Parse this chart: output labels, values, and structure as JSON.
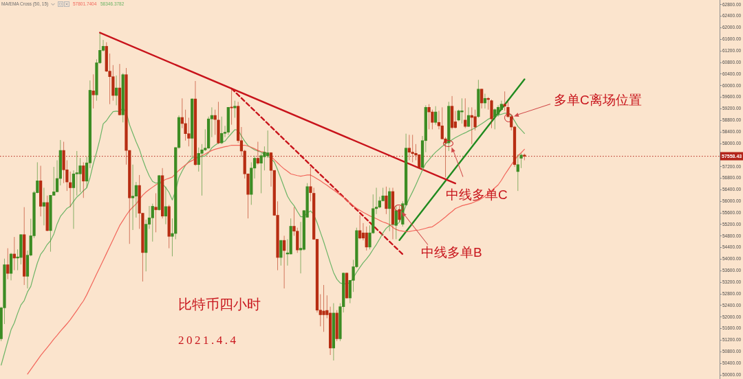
{
  "chart_data": {
    "type": "candlestick",
    "categories": [
      null,
      null,
      null,
      null,
      null,
      null,
      null,
      null,
      null,
      null,
      null,
      null,
      null,
      null,
      null,
      null,
      null,
      null,
      null,
      null,
      null,
      null,
      null,
      null,
      null,
      null,
      null,
      null,
      null,
      null,
      null,
      null,
      null,
      null,
      null,
      null,
      null,
      null,
      null,
      null,
      null,
      null,
      null,
      null,
      null,
      null,
      null,
      null,
      null,
      null,
      null,
      null,
      null,
      null,
      null,
      null,
      null,
      null,
      null,
      null,
      null,
      null,
      null,
      null,
      null,
      null,
      null,
      null,
      null,
      null,
      null,
      null,
      null,
      null,
      null,
      null,
      null,
      null,
      null,
      null,
      null,
      null,
      null,
      null,
      null,
      null,
      null,
      null,
      null,
      null,
      null,
      null,
      null,
      null,
      null,
      null,
      null,
      null,
      null,
      null,
      null,
      null,
      null,
      null,
      null,
      null,
      null,
      null,
      null,
      null,
      null,
      null,
      null,
      null,
      null,
      null,
      null,
      null,
      null,
      null,
      null,
      null,
      null,
      null,
      null,
      null,
      null,
      null,
      null,
      null,
      null,
      null,
      null,
      null,
      null,
      null,
      null,
      null,
      null,
      null,
      null,
      null,
      null,
      null,
      null,
      null,
      null,
      null,
      null,
      null,
      null,
      null,
      null,
      null,
      null,
      null,
      null,
      null,
      null,
      null
    ],
    "ohlc": [
      [
        51250,
        52360,
        51170,
        52320
      ],
      [
        52320,
        54020,
        51760,
        53810
      ],
      [
        53810,
        54380,
        53310,
        53510
      ],
      [
        53510,
        54220,
        53270,
        54180
      ],
      [
        54180,
        54770,
        53620,
        54040
      ],
      [
        54040,
        54340,
        53620,
        54080
      ],
      [
        54060,
        54860,
        53820,
        54850
      ],
      [
        54850,
        55800,
        53110,
        53410
      ],
      [
        53410,
        54300,
        52990,
        54140
      ],
      [
        54140,
        55400,
        54100,
        54810
      ],
      [
        54810,
        56360,
        54730,
        56300
      ],
      [
        56300,
        57350,
        56280,
        56710
      ],
      [
        56710,
        57230,
        55480,
        55830
      ],
      [
        55830,
        56470,
        55170,
        55960
      ],
      [
        55960,
        56200,
        54970,
        54990
      ],
      [
        54990,
        56220,
        54260,
        56210
      ],
      [
        56210,
        57190,
        56200,
        56330
      ],
      [
        56330,
        57420,
        56320,
        56790
      ],
      [
        56790,
        58120,
        56550,
        57760
      ],
      [
        57760,
        58060,
        56630,
        57090
      ],
      [
        57090,
        57420,
        56360,
        56670
      ],
      [
        56650,
        57030,
        55800,
        56470
      ],
      [
        56470,
        57070,
        55050,
        56950
      ],
      [
        56950,
        57740,
        56200,
        56990
      ],
      [
        56950,
        57500,
        56320,
        57230
      ],
      [
        57230,
        57350,
        56120,
        56700
      ],
      [
        56700,
        57540,
        56470,
        57330
      ],
      [
        57330,
        60180,
        57150,
        59840
      ],
      [
        59820,
        60390,
        59210,
        59680
      ],
      [
        59680,
        60910,
        59480,
        60790
      ],
      [
        60790,
        61820,
        60750,
        61220
      ],
      [
        61220,
        61580,
        61180,
        61360
      ],
      [
        61360,
        61500,
        60470,
        60500
      ],
      [
        60500,
        61110,
        59360,
        60310
      ],
      [
        60310,
        60710,
        59480,
        59660
      ],
      [
        59660,
        60350,
        59320,
        59920
      ],
      [
        59920,
        60750,
        58970,
        58990
      ],
      [
        58990,
        60430,
        58730,
        60380
      ],
      [
        60380,
        60610,
        57270,
        57760
      ],
      [
        57760,
        57770,
        54530,
        56120
      ],
      [
        56120,
        57270,
        55010,
        56180
      ],
      [
        56180,
        56670,
        55440,
        56550
      ],
      [
        56550,
        56910,
        55050,
        55590
      ],
      [
        55590,
        55600,
        53230,
        54230
      ],
      [
        54230,
        55370,
        53580,
        55210
      ],
      [
        55210,
        55840,
        55050,
        55430
      ],
      [
        55430,
        55920,
        54610,
        55830
      ],
      [
        55800,
        56280,
        54930,
        55710
      ],
      [
        55710,
        56910,
        55680,
        56890
      ],
      [
        56890,
        57150,
        55410,
        55490
      ],
      [
        55490,
        56510,
        55210,
        55820
      ],
      [
        55820,
        55880,
        54380,
        54790
      ],
      [
        54790,
        55410,
        54100,
        54890
      ],
      [
        54890,
        57870,
        54690,
        57860
      ],
      [
        57860,
        58970,
        57820,
        58900
      ],
      [
        58900,
        59560,
        58530,
        58690
      ],
      [
        58690,
        59170,
        58100,
        58340
      ],
      [
        58340,
        58890,
        57900,
        58180
      ],
      [
        58180,
        59560,
        57500,
        59540
      ],
      [
        59540,
        60160,
        57230,
        57270
      ],
      [
        57270,
        57860,
        57030,
        57660
      ],
      [
        57660,
        57980,
        56200,
        57780
      ],
      [
        57780,
        58490,
        57740,
        57840
      ],
      [
        57840,
        58930,
        57820,
        58850
      ],
      [
        58850,
        59250,
        58220,
        58970
      ],
      [
        58970,
        59170,
        58300,
        58830
      ],
      [
        58810,
        59440,
        57980,
        58020
      ],
      [
        58020,
        58930,
        57980,
        58350
      ],
      [
        58350,
        58610,
        58220,
        58390
      ],
      [
        58390,
        59260,
        58300,
        59250
      ],
      [
        59260,
        59880,
        58650,
        59230
      ],
      [
        59230,
        59480,
        58890,
        59290
      ],
      [
        59290,
        59440,
        58020,
        58100
      ],
      [
        58100,
        58570,
        57540,
        57740
      ],
      [
        57740,
        57780,
        56790,
        56950
      ],
      [
        56950,
        56960,
        55410,
        56240
      ],
      [
        56240,
        57350,
        55880,
        57150
      ],
      [
        57150,
        57580,
        56790,
        57490
      ],
      [
        57490,
        58060,
        57270,
        57320
      ],
      [
        57320,
        57660,
        56280,
        57580
      ],
      [
        57540,
        57900,
        57070,
        57700
      ],
      [
        57580,
        58450,
        57500,
        57680
      ],
      [
        57680,
        57700,
        56510,
        57070
      ],
      [
        57070,
        57070,
        55500,
        55520
      ],
      [
        55520,
        56000,
        53620,
        54060
      ],
      [
        54060,
        54660,
        53780,
        54650
      ],
      [
        54650,
        54810,
        52990,
        54300
      ],
      [
        54180,
        54690,
        53780,
        54220
      ],
      [
        54180,
        55410,
        54170,
        55140
      ],
      [
        55140,
        55800,
        54810,
        54970
      ],
      [
        54970,
        55090,
        54220,
        54320
      ],
      [
        54320,
        55290,
        53510,
        54380
      ],
      [
        54340,
        55700,
        54300,
        55680
      ],
      [
        55450,
        56630,
        55440,
        56510
      ],
      [
        56510,
        57190,
        56000,
        56300
      ],
      [
        56280,
        56470,
        54670,
        54690
      ],
      [
        54690,
        54700,
        52160,
        52240
      ],
      [
        52240,
        52790,
        51680,
        52080
      ],
      [
        52210,
        53110,
        51490,
        52080
      ],
      [
        52230,
        52750,
        51960,
        52080
      ],
      [
        52140,
        52360,
        50690,
        50930
      ],
      [
        50930,
        52480,
        50500,
        52140
      ],
      [
        52140,
        52240,
        51170,
        51250
      ],
      [
        51250,
        52480,
        51170,
        52360
      ],
      [
        52360,
        53540,
        52160,
        53520
      ],
      [
        53520,
        53540,
        52640,
        52660
      ],
      [
        52660,
        53280,
        52480,
        53270
      ],
      [
        53270,
        53980,
        52870,
        53740
      ],
      [
        53740,
        55090,
        53700,
        54990
      ],
      [
        54990,
        55520,
        54690,
        54730
      ],
      [
        54910,
        55250,
        54650,
        54730
      ],
      [
        54910,
        55130,
        54300,
        54420
      ],
      [
        54420,
        55170,
        54340,
        54910
      ],
      [
        54910,
        56240,
        54880,
        55750
      ],
      [
        55750,
        56470,
        55560,
        55800
      ],
      [
        55800,
        56160,
        55760,
        56020
      ],
      [
        56020,
        56470,
        56000,
        56190
      ],
      [
        56190,
        56510,
        55560,
        55750
      ],
      [
        55750,
        56470,
        54970,
        56340
      ],
      [
        56340,
        56470,
        54690,
        55210
      ],
      [
        55170,
        55840,
        54690,
        55680
      ],
      [
        55720,
        55840,
        55290,
        55370
      ],
      [
        55210,
        56000,
        55130,
        55920
      ],
      [
        55880,
        58340,
        55840,
        57840
      ],
      [
        57840,
        58300,
        57420,
        57700
      ],
      [
        57700,
        58300,
        57350,
        57650
      ],
      [
        57660,
        57980,
        57420,
        57600
      ],
      [
        57610,
        57620,
        57150,
        57170
      ],
      [
        57170,
        58260,
        57150,
        58100
      ],
      [
        58100,
        59320,
        57700,
        59250
      ],
      [
        59250,
        59360,
        58490,
        59090
      ],
      [
        59090,
        59170,
        58490,
        58730
      ],
      [
        58730,
        59290,
        58650,
        59090
      ],
      [
        58730,
        59130,
        58490,
        58610
      ],
      [
        58610,
        59250,
        58140,
        58160
      ],
      [
        58160,
        58220,
        56830,
        58020
      ],
      [
        58020,
        59440,
        57740,
        59290
      ],
      [
        59290,
        59640,
        58490,
        58550
      ],
      [
        58750,
        59130,
        58520,
        58550
      ],
      [
        58810,
        59170,
        58770,
        59130
      ],
      [
        59090,
        59560,
        58690,
        59130
      ],
      [
        58810,
        59560,
        58530,
        58590
      ],
      [
        58590,
        59250,
        58570,
        58970
      ],
      [
        58970,
        59250,
        57980,
        58900
      ],
      [
        58930,
        59170,
        58450,
        58570
      ],
      [
        58930,
        60200,
        58890,
        59880
      ],
      [
        59880,
        59890,
        59210,
        59400
      ],
      [
        59400,
        59720,
        59210,
        59560
      ],
      [
        59560,
        59600,
        59170,
        59520
      ],
      [
        59480,
        59520,
        58530,
        58850
      ],
      [
        58930,
        59210,
        58490,
        59170
      ],
      [
        59010,
        59320,
        58930,
        59250
      ],
      [
        59170,
        59480,
        59130,
        59360
      ],
      [
        59360,
        59800,
        59130,
        59290
      ],
      [
        59250,
        59480,
        58890,
        58930
      ],
      [
        58930,
        58970,
        58450,
        58570
      ],
      [
        58570,
        58610,
        57190,
        57270
      ],
      [
        57030,
        57620,
        56360,
        57270
      ],
      [
        57490,
        57660,
        57150,
        57600
      ],
      [
        57600,
        57650,
        57420,
        57558.43
      ]
    ],
    "colors": [
      "#3c8c23",
      "#3c8c23",
      "#b72d12",
      "#3c8c23",
      "#b72d12",
      "#3c8c23",
      "#3c8c23",
      "#b72d12",
      "#3c8c23",
      "#3c8c23",
      "#3c8c23",
      "#3c8c23",
      "#b72d12",
      "#3c8c23",
      "#b72d12",
      "#3c8c23",
      "#3c8c23",
      "#3c8c23",
      "#3c8c23",
      "#b72d12",
      "#b72d12",
      "#b72d12",
      "#3c8c23",
      "#3c8c23",
      "#3c8c23",
      "#b72d12",
      "#3c8c23",
      "#3c8c23",
      "#b72d12",
      "#3c8c23",
      "#3c8c23",
      "#3c8c23",
      "#b72d12",
      "#b72d12",
      "#b72d12",
      "#3c8c23",
      "#b72d12",
      "#3c8c23",
      "#b72d12",
      "#b72d12",
      "#3c8c23",
      "#3c8c23",
      "#b72d12",
      "#b72d12",
      "#3c8c23",
      "#3c8c23",
      "#3c8c23",
      "#b72d12",
      "#3c8c23",
      "#b72d12",
      "#3c8c23",
      "#b72d12",
      "#3c8c23",
      "#3c8c23",
      "#3c8c23",
      "#b72d12",
      "#b72d12",
      "#b72d12",
      "#3c8c23",
      "#b72d12",
      "#3c8c23",
      "#3c8c23",
      "#3c8c23",
      "#3c8c23",
      "#3c8c23",
      "#b72d12",
      "#b72d12",
      "#3c8c23",
      "#3c8c23",
      "#3c8c23",
      "#b72d12",
      "#3c8c23",
      "#b72d12",
      "#b72d12",
      "#b72d12",
      "#b72d12",
      "#3c8c23",
      "#3c8c23",
      "#b72d12",
      "#3c8c23",
      "#3c8c23",
      "#3c8c23",
      "#b72d12",
      "#b72d12",
      "#b72d12",
      "#3c8c23",
      "#b72d12",
      "#3c8c23",
      "#3c8c23",
      "#b72d12",
      "#b72d12",
      "#3c8c23",
      "#3c8c23",
      "#3c8c23",
      "#b72d12",
      "#b72d12",
      "#b72d12",
      "#b72d12",
      "#b72d12",
      "#b72d12",
      "#b72d12",
      "#3c8c23",
      "#b72d12",
      "#3c8c23",
      "#3c8c23",
      "#b72d12",
      "#3c8c23",
      "#3c8c23",
      "#3c8c23",
      "#b72d12",
      "#b72d12",
      "#b72d12",
      "#3c8c23",
      "#3c8c23",
      "#3c8c23",
      "#3c8c23",
      "#3c8c23",
      "#b72d12",
      "#3c8c23",
      "#b72d12",
      "#3c8c23",
      "#b72d12",
      "#3c8c23",
      "#3c8c23",
      "#b72d12",
      "#b72d12",
      "#b72d12",
      "#b72d12",
      "#3c8c23",
      "#3c8c23",
      "#b72d12",
      "#b72d12",
      "#3c8c23",
      "#b72d12",
      "#b72d12",
      "#b72d12",
      "#3c8c23",
      "#b72d12",
      "#b72d12",
      "#3c8c23",
      "#3c8c23",
      "#b72d12",
      "#3c8c23",
      "#b72d12",
      "#b72d12",
      "#3c8c23",
      "#b72d12",
      "#3c8c23",
      "#b72d12",
      "#b72d12",
      "#3c8c23",
      "#3c8c23",
      "#3c8c23",
      "#b72d12",
      "#b72d12",
      "#b72d12",
      "#b72d12",
      "#3c8c23",
      "#3c8c23",
      "#b72d12"
    ],
    "series": [
      {
        "type": "line",
        "color": "#f2655a",
        "values": [
          null,
          null,
          null,
          null,
          null,
          null,
          null,
          null,
          50030,
          50190,
          50350,
          50510,
          50670,
          50810,
          50950,
          51090,
          51240,
          51370,
          51510,
          51640,
          51770,
          51910,
          52070,
          52230,
          52400,
          52560,
          52770,
          53010,
          53250,
          53490,
          53720,
          53960,
          54200,
          54440,
          54680,
          54920,
          55160,
          55340,
          55520,
          55680,
          55800,
          55910,
          56070,
          56210,
          56320,
          56410,
          56490,
          56570,
          56640,
          56700,
          56760,
          56800,
          56840,
          56960,
          57070,
          57170,
          57260,
          57350,
          57410,
          57470,
          57530,
          57580,
          57640,
          57700,
          57760,
          57800,
          57830,
          57860,
          57890,
          57910,
          57940,
          57940,
          57940,
          57940,
          57940,
          57910,
          57870,
          57820,
          57760,
          57720,
          57700,
          57640,
          57560,
          57440,
          57330,
          57220,
          57120,
          57040,
          56950,
          56920,
          56890,
          56870,
          56890,
          56910,
          56910,
          56850,
          56780,
          56710,
          56630,
          56560,
          56470,
          56390,
          56310,
          56220,
          56140,
          56040,
          55940,
          55850,
          55760,
          55690,
          55620,
          55560,
          55500,
          55450,
          55400,
          55340,
          55290,
          55250,
          55200,
          55100,
          55030,
          54990,
          54970,
          54950,
          54960,
          54980,
          55000,
          55010,
          55040,
          55070,
          55100,
          55120,
          55200,
          55280,
          55370,
          55460,
          55560,
          55650,
          55750,
          55800,
          55850,
          55880,
          55910,
          55940,
          55990,
          56030,
          56100,
          56180,
          56280,
          56370,
          56470,
          56570,
          56730,
          56920,
          57090,
          57260,
          57420,
          57580,
          57680,
          57801.7404
        ]
      },
      {
        "type": "line",
        "color": "#6cb466",
        "values": [
          50340,
          50750,
          51160,
          51560,
          51800,
          52130,
          52420,
          52570,
          52870,
          53060,
          53480,
          53870,
          54170,
          54320,
          54510,
          54640,
          54870,
          55220,
          55480,
          55620,
          55760,
          55830,
          56000,
          56150,
          56250,
          56370,
          56470,
          56820,
          57300,
          57700,
          58150,
          58680,
          58790,
          58960,
          59100,
          59120,
          59100,
          59230,
          59080,
          58650,
          58350,
          58060,
          57800,
          57450,
          57140,
          56880,
          56690,
          56630,
          56660,
          56600,
          56480,
          56310,
          56050,
          56370,
          56820,
          57050,
          57250,
          57380,
          57500,
          57520,
          57540,
          57550,
          57570,
          57680,
          57850,
          57940,
          58020,
          58050,
          58080,
          58220,
          58350,
          58480,
          58460,
          58260,
          58080,
          57930,
          57850,
          57780,
          57740,
          57700,
          57620,
          57580,
          57480,
          57360,
          57090,
          56790,
          56480,
          56180,
          55990,
          55850,
          55650,
          55470,
          55470,
          55600,
          55670,
          55540,
          55260,
          54930,
          54600,
          54240,
          53880,
          53540,
          53310,
          53180,
          53150,
          53150,
          53190,
          53360,
          53550,
          53720,
          53880,
          54010,
          54160,
          54340,
          54510,
          54700,
          54910,
          55070,
          55170,
          55200,
          55180,
          55280,
          55580,
          55850,
          56100,
          56330,
          56570,
          56830,
          57080,
          57310,
          57440,
          57580,
          57700,
          57800,
          57900,
          57990,
          58050,
          58130,
          58200,
          58260,
          58320,
          58370,
          58430,
          58480,
          58540,
          58610,
          58680,
          58760,
          58840,
          58900,
          58940,
          58980,
          59010,
          59050,
          59040,
          58970,
          58780,
          58590,
          58470,
          58346.3782
        ]
      },
      {
        "type": "line",
        "color": "#c8131b",
        "values": [
          null,
          null,
          null,
          null,
          null,
          null,
          null,
          null,
          null,
          null,
          null,
          null,
          null,
          null,
          null,
          null,
          null,
          null,
          null,
          null,
          null,
          null,
          null,
          null,
          null,
          null,
          null,
          null,
          null,
          null,
          61830,
          null,
          null,
          null,
          null,
          null,
          null,
          null,
          null,
          null,
          null,
          null,
          null,
          null,
          null,
          null,
          null,
          null,
          null,
          null,
          null,
          null,
          null,
          null,
          null,
          null,
          null,
          null,
          null,
          null,
          null,
          null,
          null,
          null,
          null,
          null,
          null,
          null,
          null,
          null,
          null,
          null,
          null,
          null,
          null,
          null,
          null,
          null,
          null,
          null,
          null,
          null,
          null,
          null,
          null,
          null,
          null,
          null,
          null,
          null,
          null,
          null,
          null,
          null,
          null,
          null,
          null,
          null,
          null,
          null,
          null,
          null,
          null,
          null,
          null,
          null,
          null,
          null,
          null,
          null,
          null,
          null,
          null,
          null,
          null,
          null,
          null,
          null,
          null,
          null,
          null,
          null,
          null,
          null,
          null,
          null,
          null,
          null,
          null,
          null,
          null,
          null,
          null,
          null,
          null,
          null,
          null,
          null,
          56620,
          null,
          null,
          null,
          null,
          null,
          null,
          null,
          null,
          null,
          null,
          null,
          null,
          null,
          null,
          null,
          null,
          null,
          null,
          null,
          null,
          null
        ]
      },
      {
        "type": "line",
        "color": "#c8131b",
        "line_style": "dashed",
        "values": [
          null,
          null,
          null,
          null,
          null,
          null,
          null,
          null,
          null,
          null,
          null,
          null,
          null,
          null,
          null,
          null,
          null,
          null,
          null,
          null,
          null,
          null,
          null,
          null,
          null,
          null,
          null,
          null,
          null,
          null,
          null,
          null,
          null,
          null,
          null,
          null,
          null,
          null,
          null,
          null,
          null,
          null,
          null,
          null,
          null,
          null,
          null,
          null,
          null,
          null,
          null,
          null,
          null,
          null,
          null,
          null,
          null,
          null,
          null,
          null,
          null,
          null,
          null,
          null,
          null,
          null,
          null,
          null,
          null,
          null,
          59900,
          null,
          null,
          null,
          null,
          null,
          null,
          null,
          null,
          null,
          null,
          null,
          null,
          null,
          null,
          null,
          null,
          null,
          null,
          null,
          null,
          null,
          null,
          null,
          null,
          null,
          null,
          null,
          null,
          null,
          null,
          null,
          null,
          null,
          null,
          null,
          null,
          null,
          null,
          null,
          null,
          null,
          null,
          null,
          null,
          null,
          null,
          null,
          null,
          null,
          null,
          null,
          54170,
          null,
          null,
          null,
          null,
          null,
          null,
          null,
          null,
          null,
          null,
          null,
          null,
          null,
          null,
          null,
          null,
          null,
          null,
          null,
          null,
          null,
          null,
          null,
          null,
          null,
          null,
          null,
          null,
          null,
          null,
          null,
          null,
          null,
          null,
          null,
          null,
          null
        ]
      },
      {
        "type": "line",
        "color": "#1f8a1f",
        "values": [
          null,
          null,
          null,
          null,
          null,
          null,
          null,
          null,
          null,
          null,
          null,
          null,
          null,
          null,
          null,
          null,
          null,
          null,
          null,
          null,
          null,
          null,
          null,
          null,
          null,
          null,
          null,
          null,
          null,
          null,
          null,
          null,
          null,
          null,
          null,
          null,
          null,
          null,
          null,
          null,
          null,
          null,
          null,
          null,
          null,
          null,
          null,
          null,
          null,
          null,
          null,
          null,
          null,
          null,
          null,
          null,
          null,
          null,
          null,
          null,
          null,
          null,
          null,
          null,
          null,
          null,
          null,
          null,
          null,
          null,
          null,
          null,
          null,
          null,
          null,
          null,
          null,
          null,
          null,
          null,
          null,
          null,
          null,
          null,
          null,
          null,
          null,
          null,
          null,
          null,
          null,
          null,
          null,
          null,
          null,
          null,
          null,
          null,
          null,
          null,
          null,
          null,
          null,
          null,
          null,
          null,
          null,
          null,
          null,
          null,
          null,
          null,
          null,
          null,
          null,
          null,
          null,
          null,
          null,
          null,
          null,
          54660,
          null,
          null,
          null,
          null,
          null,
          null,
          null,
          null,
          null,
          null,
          null,
          null,
          null,
          null,
          null,
          null,
          null,
          null,
          null,
          null,
          null,
          null,
          null,
          null,
          null,
          null,
          null,
          null,
          null,
          null,
          null,
          null,
          null,
          null,
          null,
          null,
          null,
          60220
        ]
      }
    ],
    "ylim": [
      49860,
      62960
    ],
    "yticks": [
      {
        "value": 50000,
        "label": "50000.00"
      },
      {
        "value": 50400,
        "label": "50400.00"
      },
      {
        "value": 50800,
        "label": "50800.00"
      },
      {
        "value": 51200,
        "label": "51200.00"
      },
      {
        "value": 51600,
        "label": "51600.00"
      },
      {
        "value": 52000,
        "label": "52000.00"
      },
      {
        "value": 52400,
        "label": "52400.00"
      },
      {
        "value": 52800,
        "label": "52800.00"
      },
      {
        "value": 53200,
        "label": "53200.00"
      },
      {
        "value": 53600,
        "label": "53600.00"
      },
      {
        "value": 54000,
        "label": "54000.00"
      },
      {
        "value": 54400,
        "label": "54400.00"
      },
      {
        "value": 54800,
        "label": "54800.00"
      },
      {
        "value": 55200,
        "label": "55200.00"
      },
      {
        "value": 55600,
        "label": "55600.00"
      },
      {
        "value": 56000,
        "label": "56000.00"
      },
      {
        "value": 56400,
        "label": "56400.00"
      },
      {
        "value": 56800,
        "label": "56800.00"
      },
      {
        "value": 57200,
        "label": "57200.00"
      },
      {
        "value": 58000,
        "label": "58000.00"
      },
      {
        "value": 58400,
        "label": "58400.00"
      },
      {
        "value": 58800,
        "label": "58800.00"
      },
      {
        "value": 59200,
        "label": "59200.00"
      },
      {
        "value": 59600,
        "label": "59600.00"
      },
      {
        "value": 60000,
        "label": "60000.00"
      },
      {
        "value": 60400,
        "label": "60400.00"
      },
      {
        "value": 60800,
        "label": "60800.00"
      },
      {
        "value": 61200,
        "label": "61200.00"
      },
      {
        "value": 61600,
        "label": "61600.00"
      },
      {
        "value": 62000,
        "label": "62000.00"
      },
      {
        "value": 62400,
        "label": "62400.00"
      },
      {
        "value": 62800,
        "label": "62800.00"
      }
    ],
    "ref_lines": [
      {
        "axis": "y",
        "value": 57558.43,
        "label": "57558.43",
        "color": "#b3241a",
        "line_style": "dotted"
      }
    ],
    "annotations": [
      "MA/EMA Cross (50, 15)",
      "57801.7404",
      "58346.3782",
      "多单C离场位置",
      "中线多单C",
      "中线多单B",
      "比特币四小时",
      "2021.4.4"
    ]
  }
}
